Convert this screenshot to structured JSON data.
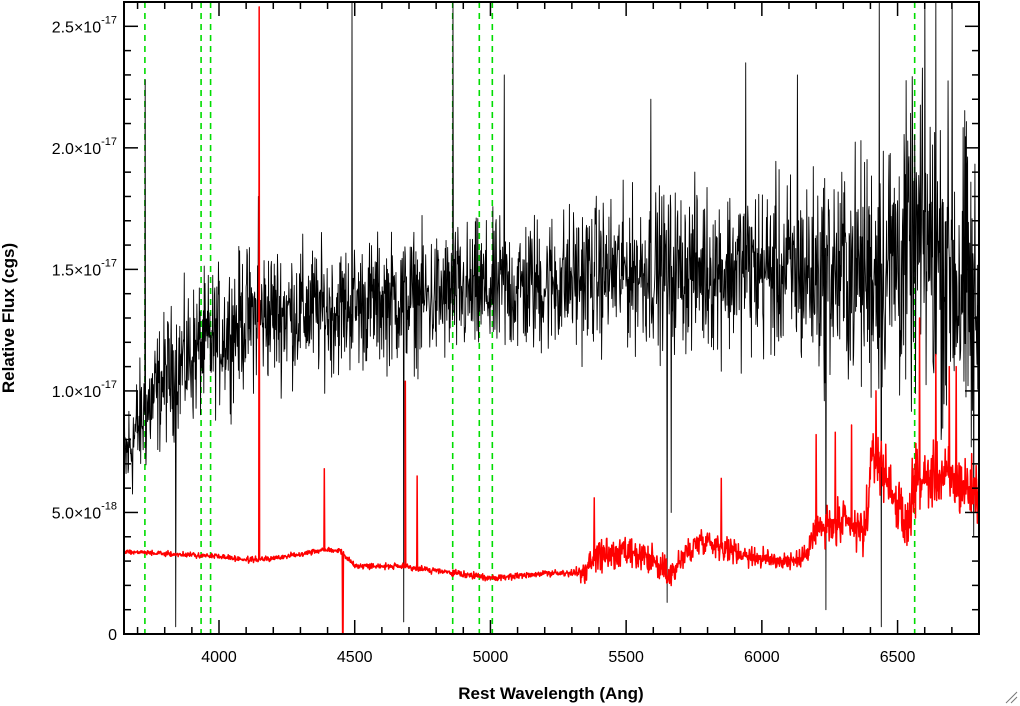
{
  "chart_data": {
    "type": "line",
    "title": "",
    "xlabel": "Rest Wavelength (Ang)",
    "ylabel": "Relative Flux (cgs)",
    "xlim": [
      3650,
      6800
    ],
    "ylim": [
      0,
      2.6e-17
    ],
    "x_ticks": [
      {
        "value": 4000,
        "label": "4000"
      },
      {
        "value": 4500,
        "label": "4500"
      },
      {
        "value": 5000,
        "label": "5000"
      },
      {
        "value": 5500,
        "label": "5500"
      },
      {
        "value": 6000,
        "label": "6000"
      },
      {
        "value": 6500,
        "label": "6500"
      }
    ],
    "y_ticks": [
      {
        "value": 0,
        "mantissa": "0",
        "exponent": ""
      },
      {
        "value": 5e-18,
        "mantissa": "5.0×10",
        "exponent": "-18"
      },
      {
        "value": 1e-17,
        "mantissa": "1.0×10",
        "exponent": "-17"
      },
      {
        "value": 1.5e-17,
        "mantissa": "1.5×10",
        "exponent": "-17"
      },
      {
        "value": 2e-17,
        "mantissa": "2.0×10",
        "exponent": "-17"
      },
      {
        "value": 2.5e-17,
        "mantissa": "2.5×10",
        "exponent": "-17"
      }
    ],
    "emission_line_markers": [
      3727,
      3934,
      3969,
      4861,
      4959,
      5007,
      6563
    ],
    "series": [
      {
        "color": "#000000",
        "continuum": [
          [
            3650,
            7e-18
          ],
          [
            3700,
            8.5e-18
          ],
          [
            3750,
            9.5e-18
          ],
          [
            3800,
            1.05e-17
          ],
          [
            3900,
            1.15e-17
          ],
          [
            4000,
            1.22e-17
          ],
          [
            4100,
            1.3e-17
          ],
          [
            4200,
            1.32e-17
          ],
          [
            4300,
            1.33e-17
          ],
          [
            4400,
            1.33e-17
          ],
          [
            4500,
            1.35e-17
          ],
          [
            4600,
            1.37e-17
          ],
          [
            4700,
            1.38e-17
          ],
          [
            4800,
            1.38e-17
          ],
          [
            4900,
            1.4e-17
          ],
          [
            5000,
            1.41e-17
          ],
          [
            5200,
            1.44e-17
          ],
          [
            5400,
            1.48e-17
          ],
          [
            5600,
            1.5e-17
          ],
          [
            5800,
            1.5e-17
          ],
          [
            6000,
            1.5e-17
          ],
          [
            6200,
            1.48e-17
          ],
          [
            6400,
            1.5e-17
          ],
          [
            6600,
            1.6e-17
          ],
          [
            6700,
            1.5e-17
          ],
          [
            6800,
            1.3e-17
          ]
        ],
        "noise_sigma": [
          [
            3650,
            2e-18
          ],
          [
            3900,
            2.4e-18
          ],
          [
            4200,
            2.4e-18
          ],
          [
            4500,
            2.2e-18
          ],
          [
            5000,
            2.4e-18
          ],
          [
            5500,
            2.6e-18
          ],
          [
            6000,
            3e-18
          ],
          [
            6300,
            3.8e-18
          ],
          [
            6500,
            5e-18
          ],
          [
            6800,
            6e-18
          ]
        ],
        "spikes": [
          [
            3727,
            2.28e-17
          ],
          [
            3840,
            3e-19
          ],
          [
            4145,
            1.8e-17
          ],
          [
            4490,
            2.6e-17
          ],
          [
            4680,
            5e-19
          ],
          [
            4862,
            2.6e-17
          ],
          [
            5050,
            2.3e-17
          ],
          [
            5590,
            2.2e-17
          ],
          [
            5650,
            1.3e-18
          ],
          [
            5665,
            5e-18
          ],
          [
            5940,
            2.35e-17
          ],
          [
            6130,
            2.3e-17
          ],
          [
            6235,
            1e-18
          ],
          [
            6432,
            2.6e-17
          ],
          [
            6440,
            3e-19
          ],
          [
            6600,
            2.6e-17
          ],
          [
            6640,
            2.6e-17
          ],
          [
            6700,
            2.6e-17
          ],
          [
            6780,
            4e-18
          ]
        ]
      },
      {
        "color": "#ff0000",
        "continuum": [
          [
            3650,
            3.4e-18
          ],
          [
            3800,
            3.3e-18
          ],
          [
            4000,
            3.2e-18
          ],
          [
            4100,
            3.05e-18
          ],
          [
            4200,
            3.1e-18
          ],
          [
            4300,
            3.3e-18
          ],
          [
            4400,
            3.5e-18
          ],
          [
            4450,
            3.4e-18
          ],
          [
            4500,
            2.8e-18
          ],
          [
            4600,
            2.8e-18
          ],
          [
            4700,
            2.75e-18
          ],
          [
            4800,
            2.6e-18
          ],
          [
            4900,
            2.45e-18
          ],
          [
            5000,
            2.3e-18
          ],
          [
            5100,
            2.4e-18
          ],
          [
            5200,
            2.5e-18
          ],
          [
            5300,
            2.5e-18
          ],
          [
            5350,
            2.5e-18
          ],
          [
            5380,
            3.2e-18
          ],
          [
            5500,
            3.3e-18
          ],
          [
            5600,
            3e-18
          ],
          [
            5660,
            2.4e-18
          ],
          [
            5720,
            3.3e-18
          ],
          [
            5780,
            3.9e-18
          ],
          [
            5900,
            3.4e-18
          ],
          [
            6000,
            3.1e-18
          ],
          [
            6100,
            3e-18
          ],
          [
            6150,
            3.1e-18
          ],
          [
            6200,
            4.3e-18
          ],
          [
            6300,
            4.5e-18
          ],
          [
            6380,
            4.2e-18
          ],
          [
            6410,
            7.5e-18
          ],
          [
            6480,
            6e-18
          ],
          [
            6530,
            4.2e-18
          ],
          [
            6560,
            6.2e-18
          ],
          [
            6650,
            6.5e-18
          ],
          [
            6700,
            6.3e-18
          ],
          [
            6800,
            5.8e-18
          ]
        ],
        "noise_sigma": [
          [
            3650,
            8e-20
          ],
          [
            5300,
            1.2e-19
          ],
          [
            5400,
            6e-19
          ],
          [
            5700,
            5e-19
          ],
          [
            6150,
            3e-19
          ],
          [
            6200,
            7e-19
          ],
          [
            6400,
            9e-19
          ],
          [
            6800,
            1.2e-18
          ]
        ],
        "spikes": [
          [
            4148,
            2.58e-17
          ],
          [
            4388,
            6.8e-18
          ],
          [
            4455,
            -5e-19
          ],
          [
            4456,
            0
          ],
          [
            4686,
            1.04e-17
          ],
          [
            4730,
            6.5e-18
          ],
          [
            5382,
            5.6e-18
          ],
          [
            5850,
            6.4e-18
          ],
          [
            6200,
            8.2e-18
          ],
          [
            6270,
            8.3e-18
          ],
          [
            6330,
            8.6e-18
          ],
          [
            6420,
            1e-17
          ],
          [
            6580,
            1.3e-17
          ],
          [
            6640,
            1.15e-17
          ],
          [
            6690,
            1.1e-17
          ],
          [
            6715,
            1.1e-17
          ]
        ]
      }
    ]
  }
}
